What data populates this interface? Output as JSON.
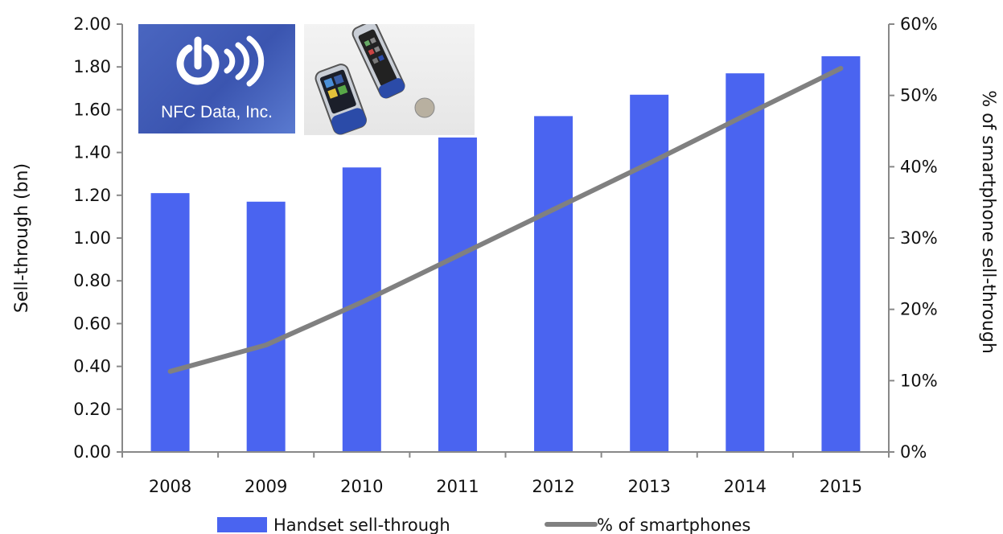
{
  "chart_data": {
    "type": "bar",
    "categories": [
      "2008",
      "2009",
      "2010",
      "2011",
      "2012",
      "2013",
      "2014",
      "2015"
    ],
    "series": [
      {
        "name": "Handset sell-through",
        "type": "bar",
        "axis": "left",
        "color": "#4a64f0",
        "values": [
          1.21,
          1.17,
          1.33,
          1.47,
          1.57,
          1.67,
          1.77,
          1.85
        ]
      },
      {
        "name": "% of smartphones",
        "type": "line",
        "axis": "right",
        "color": "#808080",
        "values": [
          11.3,
          15.0,
          21.0,
          27.5,
          34.0,
          40.5,
          47.2,
          53.8
        ]
      }
    ],
    "ylabel": "Sell-through (bn)",
    "y2label": "% of smartphone sell-through",
    "ylim": [
      0,
      2.0
    ],
    "y2lim": [
      0,
      60
    ],
    "yticks": [
      "0.00",
      "0.20",
      "0.40",
      "0.60",
      "0.80",
      "1.00",
      "1.20",
      "1.40",
      "1.60",
      "1.80",
      "2.00"
    ],
    "y2ticks": [
      "0%",
      "10%",
      "20%",
      "30%",
      "40%",
      "50%",
      "60%"
    ],
    "grid": false,
    "legend_position": "bottom"
  },
  "logo": {
    "text": "NFC Data, Inc.",
    "icon": "nfc-power-waves-icon"
  },
  "photo": {
    "subject": "nfc-phones-photo"
  }
}
